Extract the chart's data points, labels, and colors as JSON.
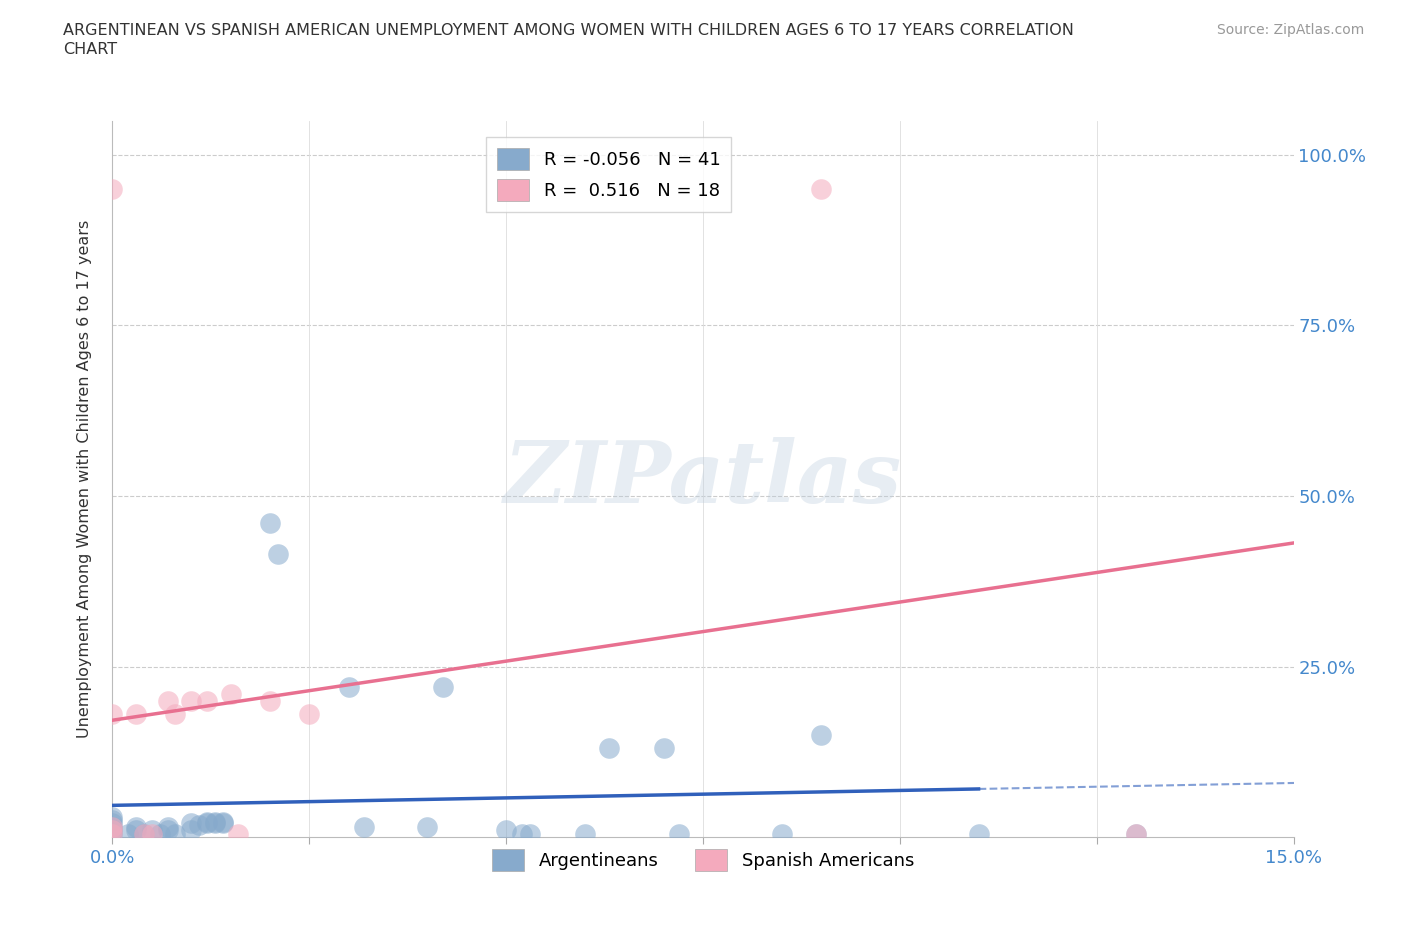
{
  "title_line1": "ARGENTINEAN VS SPANISH AMERICAN UNEMPLOYMENT AMONG WOMEN WITH CHILDREN AGES 6 TO 17 YEARS CORRELATION",
  "title_line2": "CHART",
  "source": "Source: ZipAtlas.com",
  "ylabel": "Unemployment Among Women with Children Ages 6 to 17 years",
  "xlim": [
    0.0,
    0.15
  ],
  "ylim": [
    0.0,
    1.05
  ],
  "argentineans_R": -0.056,
  "argentineans_N": 41,
  "spanish_R": 0.516,
  "spanish_N": 18,
  "blue_color": "#87AACC",
  "pink_color": "#F4AABD",
  "blue_line_color": "#3060BB",
  "pink_line_color": "#E87090",
  "watermark": "ZIPatlas",
  "arg_x": [
    0.0,
    0.0,
    0.0,
    0.0,
    0.0,
    0.0,
    0.002,
    0.003,
    0.003,
    0.004,
    0.005,
    0.006,
    0.007,
    0.007,
    0.008,
    0.01,
    0.01,
    0.011,
    0.012,
    0.012,
    0.013,
    0.013,
    0.014,
    0.014,
    0.02,
    0.021,
    0.03,
    0.032,
    0.04,
    0.042,
    0.05,
    0.052,
    0.053,
    0.06,
    0.063,
    0.07,
    0.072,
    0.085,
    0.09,
    0.11,
    0.13
  ],
  "arg_y": [
    0.005,
    0.01,
    0.015,
    0.02,
    0.025,
    0.03,
    0.005,
    0.01,
    0.015,
    0.005,
    0.01,
    0.005,
    0.01,
    0.015,
    0.005,
    0.01,
    0.02,
    0.018,
    0.02,
    0.022,
    0.02,
    0.022,
    0.02,
    0.022,
    0.46,
    0.415,
    0.22,
    0.015,
    0.015,
    0.22,
    0.01,
    0.005,
    0.005,
    0.005,
    0.13,
    0.13,
    0.005,
    0.005,
    0.15,
    0.005,
    0.005
  ],
  "spa_x": [
    0.0,
    0.0,
    0.0,
    0.0,
    0.0,
    0.003,
    0.004,
    0.005,
    0.007,
    0.008,
    0.01,
    0.012,
    0.015,
    0.016,
    0.02,
    0.025,
    0.09,
    0.13
  ],
  "spa_y": [
    0.005,
    0.01,
    0.015,
    0.18,
    0.95,
    0.18,
    0.005,
    0.005,
    0.2,
    0.18,
    0.2,
    0.2,
    0.21,
    0.005,
    0.2,
    0.18,
    0.95,
    0.005
  ]
}
